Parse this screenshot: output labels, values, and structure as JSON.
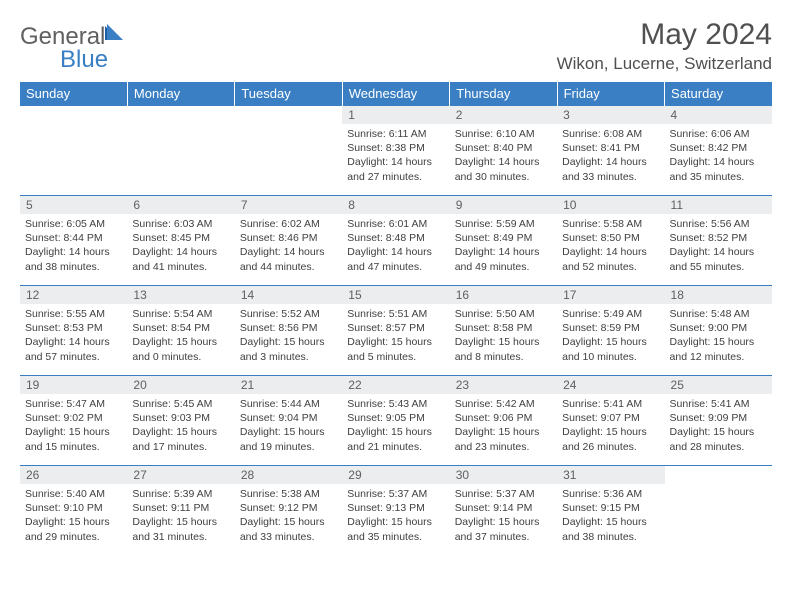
{
  "logo": {
    "general": "General",
    "blue": "Blue"
  },
  "title": "May 2024",
  "location": "Wikon, Lucerne, Switzerland",
  "colors": {
    "header_bg": "#3a7fc4",
    "header_text": "#ffffff",
    "daynum_bg": "#ecedee",
    "border": "#3a7fc4",
    "text": "#404040"
  },
  "weekdays": [
    "Sunday",
    "Monday",
    "Tuesday",
    "Wednesday",
    "Thursday",
    "Friday",
    "Saturday"
  ],
  "cells": [
    [
      null,
      null,
      null,
      {
        "n": "1",
        "sr": "6:11 AM",
        "ss": "8:38 PM",
        "dl": "14 hours and 27 minutes."
      },
      {
        "n": "2",
        "sr": "6:10 AM",
        "ss": "8:40 PM",
        "dl": "14 hours and 30 minutes."
      },
      {
        "n": "3",
        "sr": "6:08 AM",
        "ss": "8:41 PM",
        "dl": "14 hours and 33 minutes."
      },
      {
        "n": "4",
        "sr": "6:06 AM",
        "ss": "8:42 PM",
        "dl": "14 hours and 35 minutes."
      }
    ],
    [
      {
        "n": "5",
        "sr": "6:05 AM",
        "ss": "8:44 PM",
        "dl": "14 hours and 38 minutes."
      },
      {
        "n": "6",
        "sr": "6:03 AM",
        "ss": "8:45 PM",
        "dl": "14 hours and 41 minutes."
      },
      {
        "n": "7",
        "sr": "6:02 AM",
        "ss": "8:46 PM",
        "dl": "14 hours and 44 minutes."
      },
      {
        "n": "8",
        "sr": "6:01 AM",
        "ss": "8:48 PM",
        "dl": "14 hours and 47 minutes."
      },
      {
        "n": "9",
        "sr": "5:59 AM",
        "ss": "8:49 PM",
        "dl": "14 hours and 49 minutes."
      },
      {
        "n": "10",
        "sr": "5:58 AM",
        "ss": "8:50 PM",
        "dl": "14 hours and 52 minutes."
      },
      {
        "n": "11",
        "sr": "5:56 AM",
        "ss": "8:52 PM",
        "dl": "14 hours and 55 minutes."
      }
    ],
    [
      {
        "n": "12",
        "sr": "5:55 AM",
        "ss": "8:53 PM",
        "dl": "14 hours and 57 minutes."
      },
      {
        "n": "13",
        "sr": "5:54 AM",
        "ss": "8:54 PM",
        "dl": "15 hours and 0 minutes."
      },
      {
        "n": "14",
        "sr": "5:52 AM",
        "ss": "8:56 PM",
        "dl": "15 hours and 3 minutes."
      },
      {
        "n": "15",
        "sr": "5:51 AM",
        "ss": "8:57 PM",
        "dl": "15 hours and 5 minutes."
      },
      {
        "n": "16",
        "sr": "5:50 AM",
        "ss": "8:58 PM",
        "dl": "15 hours and 8 minutes."
      },
      {
        "n": "17",
        "sr": "5:49 AM",
        "ss": "8:59 PM",
        "dl": "15 hours and 10 minutes."
      },
      {
        "n": "18",
        "sr": "5:48 AM",
        "ss": "9:00 PM",
        "dl": "15 hours and 12 minutes."
      }
    ],
    [
      {
        "n": "19",
        "sr": "5:47 AM",
        "ss": "9:02 PM",
        "dl": "15 hours and 15 minutes."
      },
      {
        "n": "20",
        "sr": "5:45 AM",
        "ss": "9:03 PM",
        "dl": "15 hours and 17 minutes."
      },
      {
        "n": "21",
        "sr": "5:44 AM",
        "ss": "9:04 PM",
        "dl": "15 hours and 19 minutes."
      },
      {
        "n": "22",
        "sr": "5:43 AM",
        "ss": "9:05 PM",
        "dl": "15 hours and 21 minutes."
      },
      {
        "n": "23",
        "sr": "5:42 AM",
        "ss": "9:06 PM",
        "dl": "15 hours and 23 minutes."
      },
      {
        "n": "24",
        "sr": "5:41 AM",
        "ss": "9:07 PM",
        "dl": "15 hours and 26 minutes."
      },
      {
        "n": "25",
        "sr": "5:41 AM",
        "ss": "9:09 PM",
        "dl": "15 hours and 28 minutes."
      }
    ],
    [
      {
        "n": "26",
        "sr": "5:40 AM",
        "ss": "9:10 PM",
        "dl": "15 hours and 29 minutes."
      },
      {
        "n": "27",
        "sr": "5:39 AM",
        "ss": "9:11 PM",
        "dl": "15 hours and 31 minutes."
      },
      {
        "n": "28",
        "sr": "5:38 AM",
        "ss": "9:12 PM",
        "dl": "15 hours and 33 minutes."
      },
      {
        "n": "29",
        "sr": "5:37 AM",
        "ss": "9:13 PM",
        "dl": "15 hours and 35 minutes."
      },
      {
        "n": "30",
        "sr": "5:37 AM",
        "ss": "9:14 PM",
        "dl": "15 hours and 37 minutes."
      },
      {
        "n": "31",
        "sr": "5:36 AM",
        "ss": "9:15 PM",
        "dl": "15 hours and 38 minutes."
      },
      null
    ]
  ],
  "labels": {
    "sunrise": "Sunrise: ",
    "sunset": "Sunset: ",
    "daylight": "Daylight: "
  }
}
